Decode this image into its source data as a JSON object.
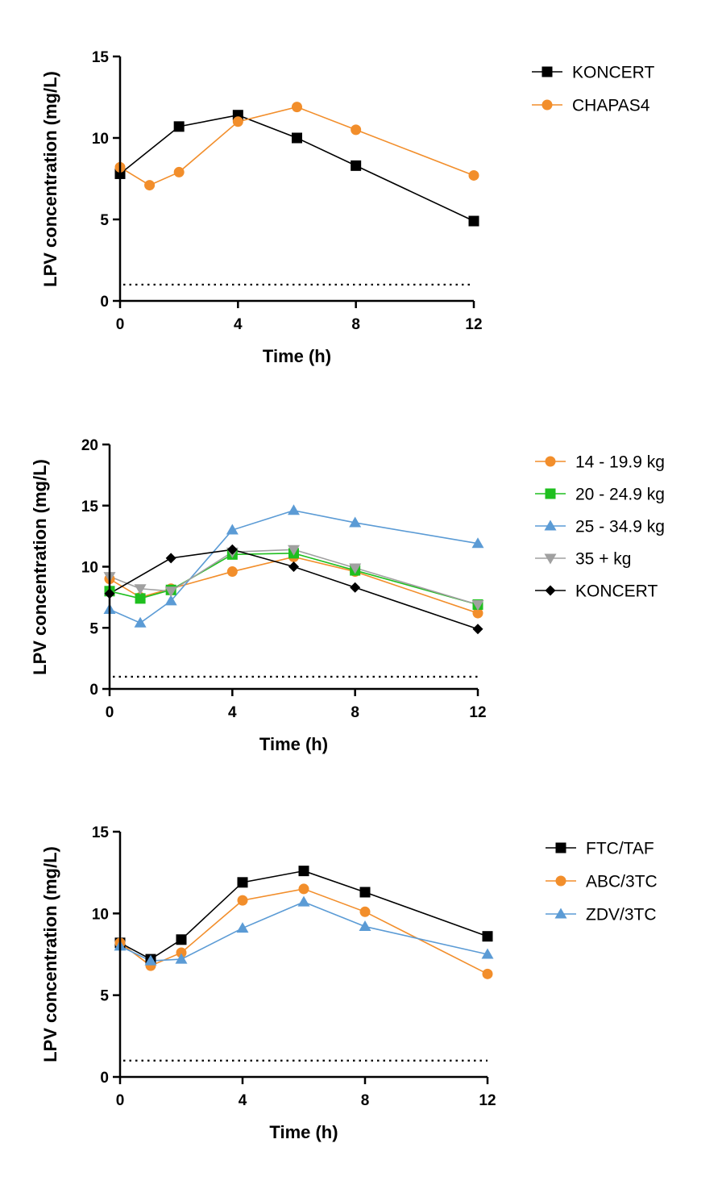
{
  "chart_data": [
    {
      "type": "line",
      "xlabel": "Time (h)",
      "ylabel": "LPV concentration (mg/L)",
      "xlim": [
        0,
        12
      ],
      "ylim": [
        0,
        15
      ],
      "xticks": [
        0,
        4,
        8,
        12
      ],
      "yticks": [
        0,
        5,
        10,
        15
      ],
      "reference_line": {
        "y": 1,
        "style": "dotted"
      },
      "legend_position": "right",
      "series": [
        {
          "name": "KONCERT",
          "color": "#000000",
          "marker": "square",
          "x": [
            0,
            2,
            4,
            6,
            8,
            12
          ],
          "values": [
            7.8,
            10.7,
            11.4,
            10.0,
            8.3,
            4.9
          ]
        },
        {
          "name": "CHAPAS4",
          "color": "#f28e2b",
          "marker": "circle",
          "x": [
            0,
            1,
            2,
            4,
            6,
            8,
            12
          ],
          "values": [
            8.2,
            7.1,
            7.9,
            11.0,
            11.9,
            10.5,
            7.7
          ]
        }
      ]
    },
    {
      "type": "line",
      "xlabel": "Time (h)",
      "ylabel": "LPV concentration (mg/L)",
      "xlim": [
        0,
        12
      ],
      "ylim": [
        0,
        20
      ],
      "xticks": [
        0,
        4,
        8,
        12
      ],
      "yticks": [
        0,
        5,
        10,
        15,
        20
      ],
      "reference_line": {
        "y": 1,
        "style": "dotted"
      },
      "legend_position": "right",
      "series": [
        {
          "name": "14 - 19.9 kg",
          "color": "#f28e2b",
          "marker": "circle",
          "x": [
            0,
            1,
            2,
            4,
            6,
            8,
            12
          ],
          "values": [
            9.0,
            7.5,
            8.2,
            9.6,
            10.8,
            9.6,
            6.2
          ]
        },
        {
          "name": "20 - 24.9 kg",
          "color": "#1fbf1f",
          "marker": "square",
          "x": [
            0,
            1,
            2,
            4,
            6,
            8,
            12
          ],
          "values": [
            8.0,
            7.4,
            8.1,
            11.0,
            11.1,
            9.7,
            6.9
          ]
        },
        {
          "name": "25 - 34.9 kg",
          "color": "#5b9bd5",
          "marker": "triangle",
          "x": [
            0,
            1,
            2,
            4,
            6,
            8,
            12
          ],
          "values": [
            6.5,
            5.4,
            7.2,
            13.0,
            14.6,
            13.6,
            11.9
          ]
        },
        {
          "name": "35 + kg",
          "color": "#a0a0a0",
          "marker": "triangle-down",
          "x": [
            0,
            1,
            2,
            4,
            6,
            8,
            12
          ],
          "values": [
            9.2,
            8.2,
            8.0,
            11.2,
            11.4,
            9.9,
            6.9
          ]
        },
        {
          "name": "KONCERT",
          "color": "#000000",
          "marker": "diamond",
          "x": [
            0,
            2,
            4,
            6,
            8,
            12
          ],
          "values": [
            7.8,
            10.7,
            11.4,
            10.0,
            8.3,
            4.9
          ]
        }
      ]
    },
    {
      "type": "line",
      "xlabel": "Time (h)",
      "ylabel": "LPV concentration (mg/L)",
      "xlim": [
        0,
        12
      ],
      "ylim": [
        0,
        15
      ],
      "xticks": [
        0,
        4,
        8,
        12
      ],
      "yticks": [
        0,
        5,
        10,
        15
      ],
      "reference_line": {
        "y": 1,
        "style": "dotted"
      },
      "legend_position": "right",
      "series": [
        {
          "name": "FTC/TAF",
          "color": "#000000",
          "marker": "square",
          "x": [
            0,
            1,
            2,
            4,
            6,
            8,
            12
          ],
          "values": [
            8.2,
            7.2,
            8.4,
            11.9,
            12.6,
            11.3,
            8.6
          ]
        },
        {
          "name": "ABC/3TC",
          "color": "#f28e2b",
          "marker": "circle",
          "x": [
            0,
            1,
            2,
            4,
            6,
            8,
            12
          ],
          "values": [
            8.2,
            6.8,
            7.6,
            10.8,
            11.5,
            10.1,
            6.3
          ]
        },
        {
          "name": "ZDV/3TC",
          "color": "#5b9bd5",
          "marker": "triangle",
          "x": [
            0,
            1,
            2,
            4,
            6,
            8,
            12
          ],
          "values": [
            8.0,
            7.1,
            7.2,
            9.1,
            10.7,
            9.2,
            7.5
          ]
        }
      ]
    }
  ]
}
